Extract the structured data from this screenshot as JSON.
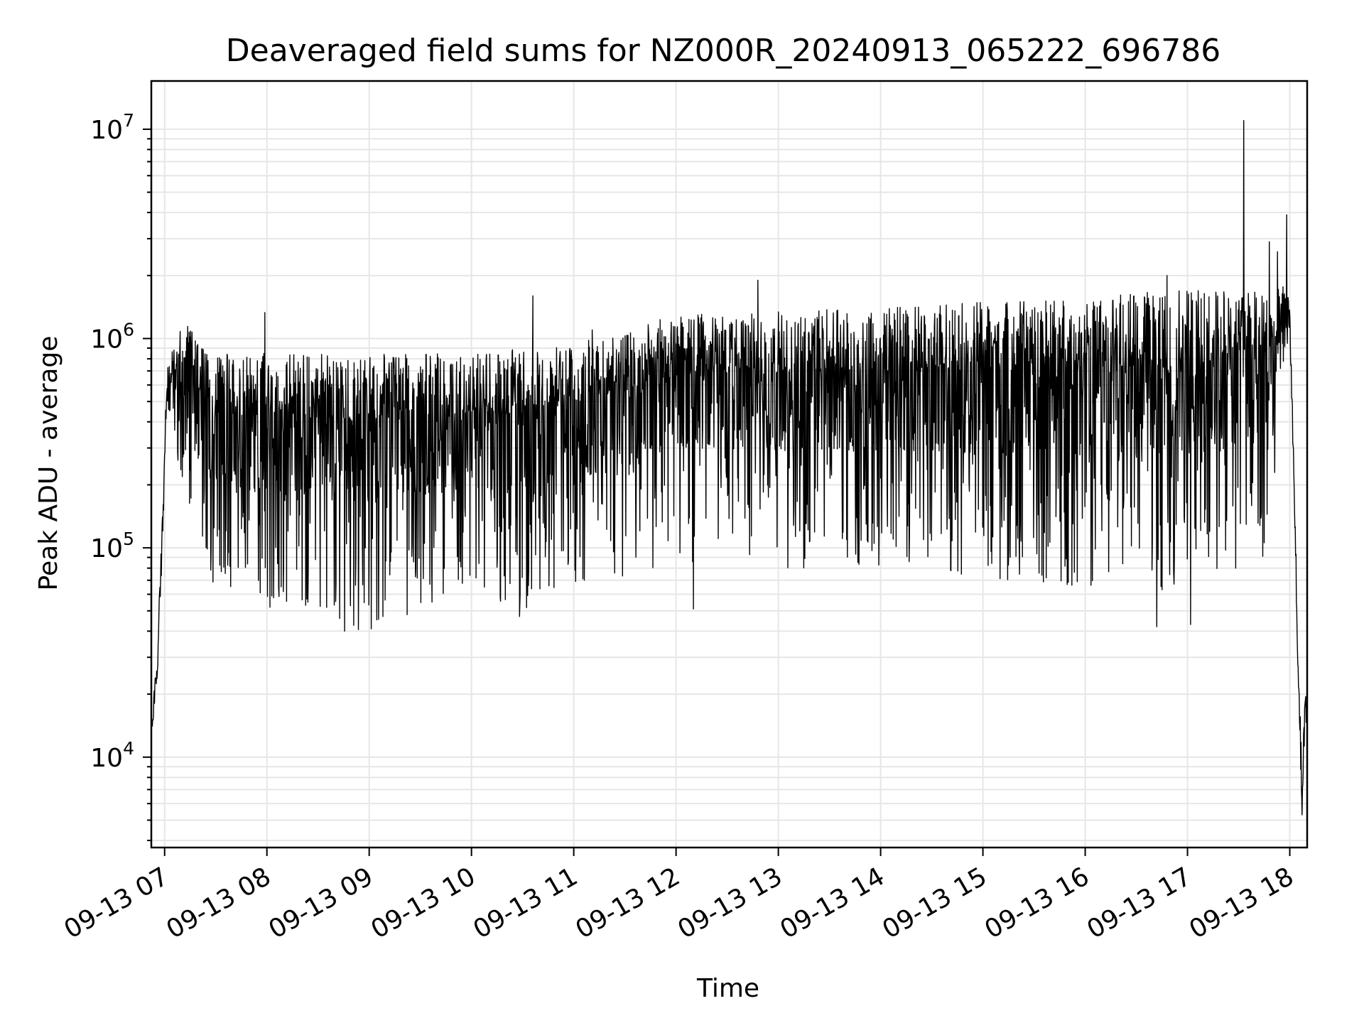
{
  "chart_data": {
    "type": "line",
    "title": "Deaveraged field sums for NZ000R_20240913_065222_696786",
    "xlabel": "Time",
    "ylabel": "Peak ADU - average",
    "yscale": "log",
    "grid": true,
    "line_color": "#000000",
    "grid_color": "#e6e6e6",
    "xlim_hours": [
      6.87,
      18.17
    ],
    "ylim": [
      3700,
      17000000
    ],
    "x_ticks": [
      {
        "hour": 7,
        "label": "09-13 07"
      },
      {
        "hour": 8,
        "label": "09-13 08"
      },
      {
        "hour": 9,
        "label": "09-13 09"
      },
      {
        "hour": 10,
        "label": "09-13 10"
      },
      {
        "hour": 11,
        "label": "09-13 11"
      },
      {
        "hour": 12,
        "label": "09-13 12"
      },
      {
        "hour": 13,
        "label": "09-13 13"
      },
      {
        "hour": 14,
        "label": "09-13 14"
      },
      {
        "hour": 15,
        "label": "09-13 15"
      },
      {
        "hour": 16,
        "label": "09-13 16"
      },
      {
        "hour": 17,
        "label": "09-13 17"
      },
      {
        "hour": 18,
        "label": "09-13 18"
      }
    ],
    "y_ticks": [
      {
        "value": 10000,
        "base": "10",
        "exp": "4"
      },
      {
        "value": 100000,
        "base": "10",
        "exp": "5"
      },
      {
        "value": 1000000,
        "base": "10",
        "exp": "6"
      },
      {
        "value": 10000000,
        "base": "10",
        "exp": "7"
      }
    ],
    "series": [
      {
        "envelope": [
          {
            "hour": 6.88,
            "upper": 14000,
            "lower": 14000
          },
          {
            "hour": 6.9,
            "upper": 22000,
            "lower": 17000
          },
          {
            "hour": 6.93,
            "upper": 33000,
            "lower": 25000
          },
          {
            "hour": 6.96,
            "upper": 85000,
            "lower": 55000
          },
          {
            "hour": 6.99,
            "upper": 200000,
            "lower": 150000
          },
          {
            "hour": 7.02,
            "upper": 800000,
            "lower": 500000
          },
          {
            "hour": 7.1,
            "upper": 900000,
            "lower": 330000
          },
          {
            "hour": 7.2,
            "upper": 1300000,
            "lower": 130000
          },
          {
            "hour": 7.4,
            "upper": 850000,
            "lower": 70000
          },
          {
            "hour": 7.8,
            "upper": 850000,
            "lower": 55000
          },
          {
            "hour": 8.5,
            "upper": 850000,
            "lower": 52000
          },
          {
            "hour": 8.9,
            "upper": 850000,
            "lower": 40000
          },
          {
            "hour": 9.5,
            "upper": 850000,
            "lower": 50000
          },
          {
            "hour": 10.0,
            "upper": 850000,
            "lower": 55000
          },
          {
            "hour": 10.5,
            "upper": 900000,
            "lower": 50000
          },
          {
            "hour": 11.0,
            "upper": 950000,
            "lower": 60000
          },
          {
            "hour": 11.5,
            "upper": 1100000,
            "lower": 70000
          },
          {
            "hour": 12.0,
            "upper": 1300000,
            "lower": 80000
          },
          {
            "hour": 12.5,
            "upper": 1350000,
            "lower": 90000
          },
          {
            "hour": 13.0,
            "upper": 1350000,
            "lower": 80000
          },
          {
            "hour": 14.0,
            "upper": 1400000,
            "lower": 80000
          },
          {
            "hour": 15.0,
            "upper": 1500000,
            "lower": 70000
          },
          {
            "hour": 16.0,
            "upper": 1600000,
            "lower": 65000
          },
          {
            "hour": 17.0,
            "upper": 1700000,
            "lower": 60000
          },
          {
            "hour": 17.7,
            "upper": 1700000,
            "lower": 70000
          },
          {
            "hour": 17.85,
            "upper": 1700000,
            "lower": 200000
          },
          {
            "hour": 17.95,
            "upper": 1800000,
            "lower": 800000
          },
          {
            "hour": 18.0,
            "upper": 1500000,
            "lower": 1100000
          },
          {
            "hour": 18.03,
            "upper": 400000,
            "lower": 300000
          },
          {
            "hour": 18.07,
            "upper": 60000,
            "lower": 40000
          },
          {
            "hour": 18.1,
            "upper": 20000,
            "lower": 10000
          },
          {
            "hour": 18.12,
            "upper": 8000,
            "lower": 5300
          },
          {
            "hour": 18.15,
            "upper": 22000,
            "lower": 13000
          },
          {
            "hour": 18.17,
            "upper": 15000,
            "lower": 14000
          }
        ],
        "notable_spikes": [
          {
            "hour": 7.98,
            "value": 1330000
          },
          {
            "hour": 8.03,
            "value": 52000
          },
          {
            "hour": 8.76,
            "value": 40000
          },
          {
            "hour": 9.02,
            "value": 41000
          },
          {
            "hour": 10.6,
            "value": 1600000
          },
          {
            "hour": 10.47,
            "value": 47000
          },
          {
            "hour": 11.18,
            "value": 1100000
          },
          {
            "hour": 12.17,
            "value": 51000
          },
          {
            "hour": 12.8,
            "value": 1900000
          },
          {
            "hour": 15.4,
            "value": 1500000
          },
          {
            "hour": 16.8,
            "value": 2000000
          },
          {
            "hour": 16.7,
            "value": 42000
          },
          {
            "hour": 17.03,
            "value": 43000
          },
          {
            "hour": 17.55,
            "value": 11000000
          },
          {
            "hour": 17.8,
            "value": 2900000
          },
          {
            "hour": 17.88,
            "value": 2600000
          },
          {
            "hour": 17.97,
            "value": 3900000
          },
          {
            "hour": 18.12,
            "value": 5300
          }
        ]
      }
    ]
  }
}
